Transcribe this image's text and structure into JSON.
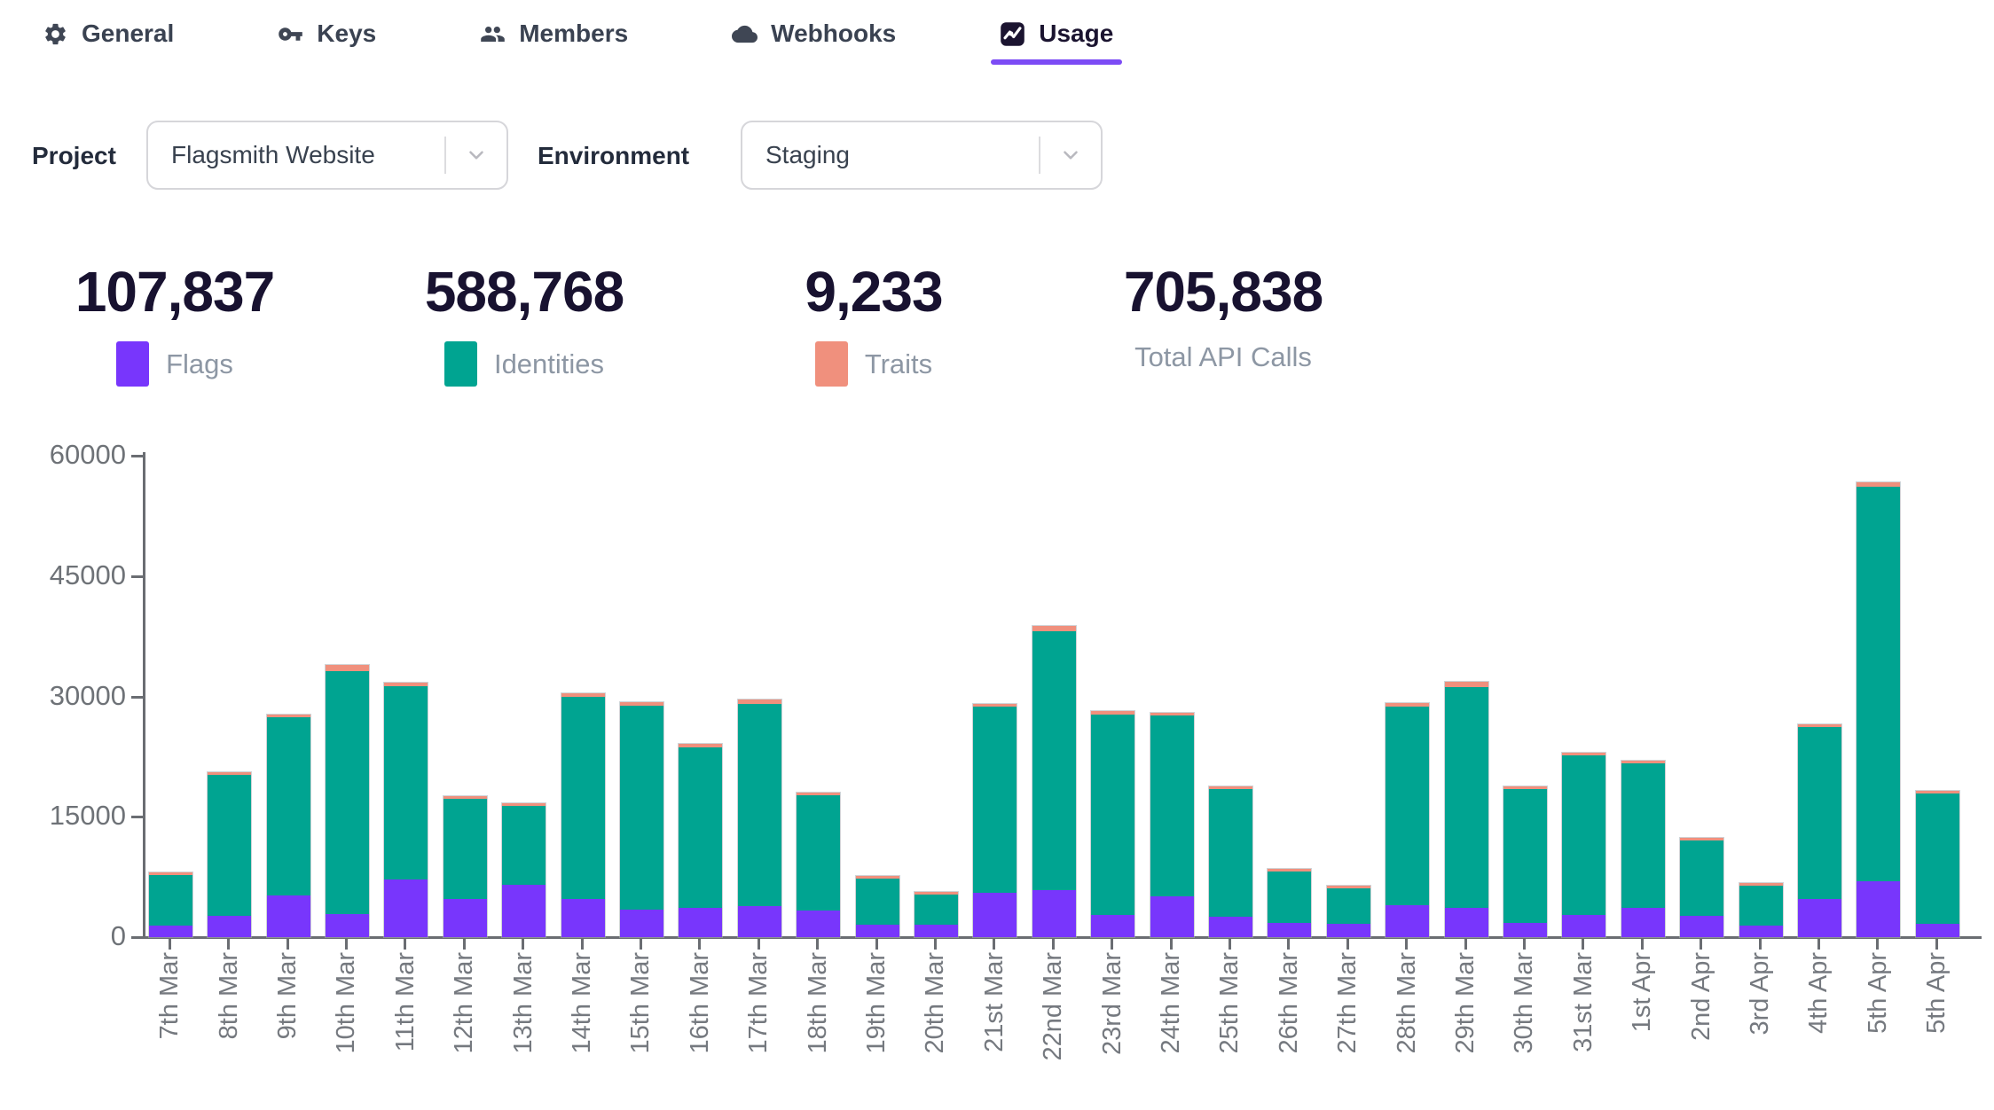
{
  "tabs": {
    "items": [
      {
        "label": "General",
        "icon": "gear-icon",
        "active": false
      },
      {
        "label": "Keys",
        "icon": "key-icon",
        "active": false
      },
      {
        "label": "Members",
        "icon": "members-icon",
        "active": false
      },
      {
        "label": "Webhooks",
        "icon": "cloud-icon",
        "active": false
      },
      {
        "label": "Usage",
        "icon": "chart-icon",
        "active": true
      }
    ],
    "active_underline_color": "#7C4BF5"
  },
  "filters": {
    "project_label": "Project",
    "project_value": "Flagsmith Website",
    "environment_label": "Environment",
    "environment_value": "Staging"
  },
  "stats": [
    {
      "value": "107,837",
      "label": "Flags",
      "color": "#7836FC"
    },
    {
      "value": "588,768",
      "label": "Identities",
      "color": "#00A491"
    },
    {
      "value": "9,233",
      "label": "Traits",
      "color": "#F0907D"
    },
    {
      "value": "705,838",
      "label": "Total API Calls",
      "color": null
    }
  ],
  "chart_data": {
    "type": "bar",
    "stacked": true,
    "title": "",
    "xlabel": "",
    "ylabel": "",
    "ylim": [
      0,
      60000
    ],
    "yticks": [
      0,
      15000,
      30000,
      45000,
      60000
    ],
    "grid": false,
    "legend_position": "top-stats-row",
    "categories": [
      "7th Mar",
      "8th Mar",
      "9th Mar",
      "10th Mar",
      "11th Mar",
      "12th Mar",
      "13th Mar",
      "14th Mar",
      "15th Mar",
      "16th Mar",
      "17th Mar",
      "18th Mar",
      "19th Mar",
      "20th Mar",
      "21st Mar",
      "22nd Mar",
      "23rd Mar",
      "24th Mar",
      "25th Mar",
      "26th Mar",
      "27th Mar",
      "28th Mar",
      "29th Mar",
      "30th Mar",
      "31st Mar",
      "1st Apr",
      "2nd Apr",
      "3rd Apr",
      "4th Apr",
      "5th Apr",
      "5th Apr"
    ],
    "series": [
      {
        "name": "Flags",
        "color": "#7836FC",
        "values": [
          1400,
          2700,
          5200,
          2900,
          7200,
          4800,
          6500,
          4700,
          3400,
          3600,
          3900,
          3300,
          1600,
          1500,
          5500,
          5900,
          2800,
          5100,
          2500,
          1800,
          1700,
          4000,
          3700,
          1800,
          2800,
          3650,
          2700,
          1450,
          4750,
          7000,
          1700
        ]
      },
      {
        "name": "Identities",
        "color": "#00A491",
        "values": [
          6320,
          17500,
          22250,
          30200,
          24100,
          12450,
          9850,
          25200,
          25450,
          20100,
          25200,
          14350,
          5700,
          3780,
          23200,
          32200,
          24900,
          22500,
          15900,
          6350,
          4380,
          24700,
          27450,
          16700,
          19850,
          18050,
          9300,
          4970,
          21450,
          49150,
          16180
        ]
      },
      {
        "name": "Traits",
        "color": "#F0907D",
        "values": [
          80,
          200,
          250,
          800,
          400,
          150,
          150,
          500,
          450,
          400,
          500,
          350,
          100,
          120,
          400,
          700,
          500,
          400,
          300,
          150,
          120,
          500,
          650,
          200,
          250,
          200,
          100,
          80,
          300,
          500,
          220
        ]
      }
    ]
  }
}
